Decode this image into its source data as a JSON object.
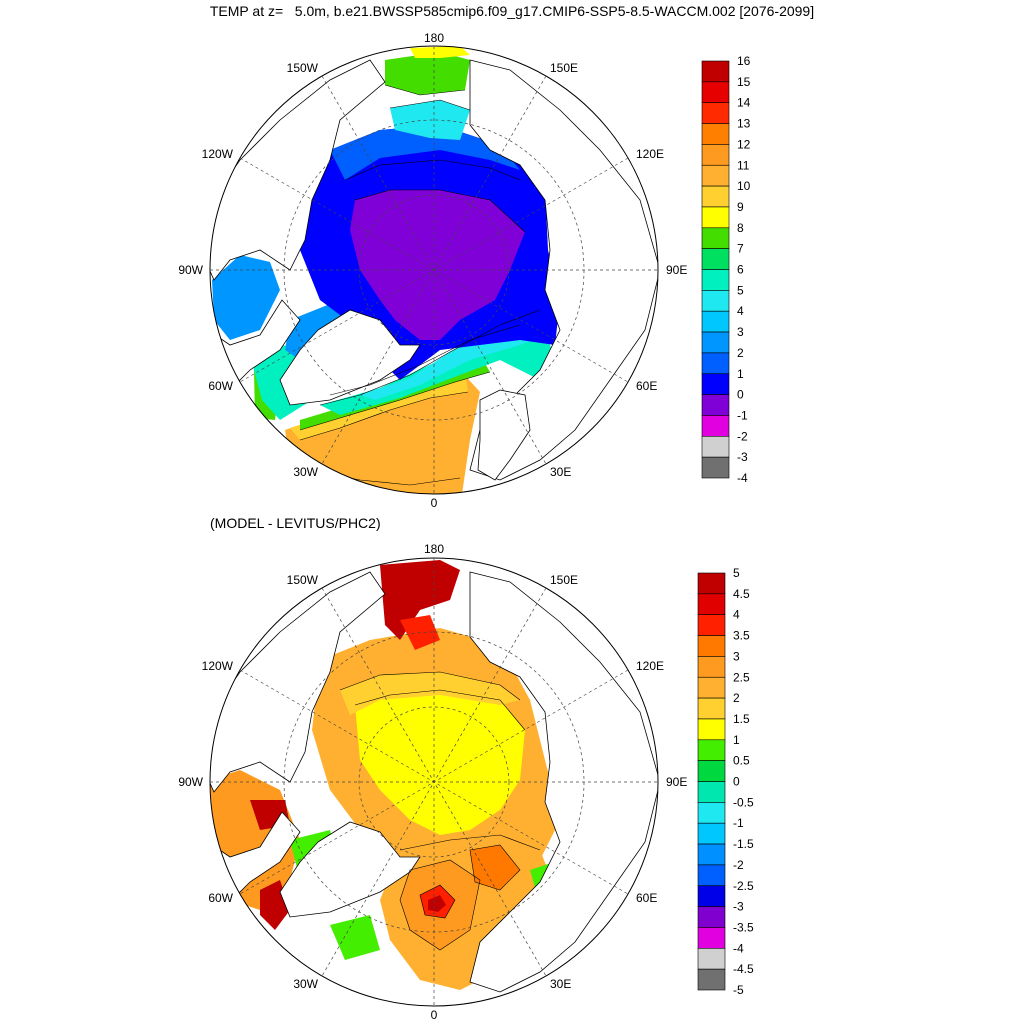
{
  "title": "TEMP at z=   5.0m, b.e21.BWSSP585cmip6.f09_g17.CMIP6-SSP5-8.5-WACCM.002 [2076-2099]",
  "subtitle": "(MODEL - LEVITUS/PHC2)",
  "longitude_labels": {
    "180": "180",
    "150E": "150E",
    "120E": "120E",
    "90E": "90E",
    "60E": "60E",
    "30E": "30E",
    "0": "0",
    "30W": "30W",
    "60W": "60W",
    "90W": "90W",
    "120W": "120W",
    "150W": "150W"
  },
  "top_panel": {
    "colorbar_labels": [
      "16",
      "15",
      "14",
      "13",
      "12",
      "11",
      "10",
      "9",
      "8",
      "7",
      "6",
      "5",
      "4",
      "3",
      "2",
      "1",
      "0",
      "-1",
      "-2",
      "-3",
      "-4"
    ],
    "colors": [
      "#c00000",
      "#e60000",
      "#ff2a00",
      "#ff8000",
      "#ff9a20",
      "#ffb030",
      "#ffd030",
      "#ffff00",
      "#44dd00",
      "#00e060",
      "#00f0c0",
      "#20e8f0",
      "#00c8ff",
      "#0096ff",
      "#0060ff",
      "#0000ff",
      "#8000d8",
      "#e000e0",
      "#d0d0d0",
      "#707070"
    ]
  },
  "bottom_panel": {
    "colorbar_labels": [
      "5",
      "4.5",
      "4",
      "3.5",
      "3",
      "2.5",
      "2",
      "1.5",
      "1",
      "0.5",
      "0",
      "-0.5",
      "-1",
      "-1.5",
      "-2",
      "-2.5",
      "-3",
      "-3.5",
      "-4",
      "-4.5",
      "-5"
    ],
    "colors": [
      "#c00000",
      "#e00000",
      "#ff2000",
      "#ff7800",
      "#ff9a20",
      "#ffb030",
      "#ffd030",
      "#ffff00",
      "#44ee00",
      "#00d840",
      "#00e8b0",
      "#20e8f0",
      "#00c8ff",
      "#0090ff",
      "#0060ff",
      "#0000e8",
      "#8000d0",
      "#e000e0",
      "#d0d0d0",
      "#707070"
    ]
  }
}
